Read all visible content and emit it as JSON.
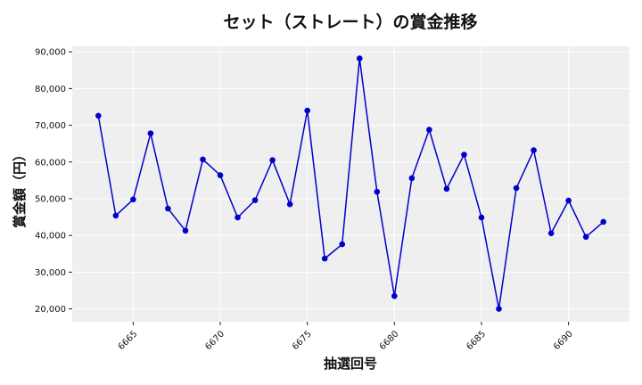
{
  "chart_data": {
    "type": "line",
    "title": "セット（ストレート）の賞金推移",
    "xlabel": "抽選回号",
    "ylabel": "賞金額（円）",
    "xlim": [
      6661.5,
      6693.5
    ],
    "ylim": [
      16500,
      91500
    ],
    "xticks": [
      6665,
      6670,
      6675,
      6680,
      6685,
      6690
    ],
    "xtick_labels": [
      "6665",
      "6670",
      "6675",
      "6680",
      "6685",
      "6690"
    ],
    "yticks": [
      20000,
      30000,
      40000,
      50000,
      60000,
      70000,
      80000,
      90000
    ],
    "ytick_labels": [
      "20,000",
      "30,000",
      "40,000",
      "50,000",
      "60,000",
      "70,000",
      "80,000",
      "90,000"
    ],
    "grid": true,
    "line_color": "#0000cc",
    "marker_color": "#0000cc",
    "plot_background": "#efefef",
    "x": [
      6663,
      6664,
      6665,
      6666,
      6667,
      6668,
      6669,
      6670,
      6671,
      6672,
      6673,
      6674,
      6675,
      6676,
      6677,
      6678,
      6679,
      6680,
      6681,
      6682,
      6683,
      6684,
      6685,
      6686,
      6687,
      6688,
      6689,
      6690,
      6691,
      6692
    ],
    "y": [
      72600,
      45400,
      49800,
      67800,
      47300,
      41300,
      60700,
      56400,
      44900,
      49600,
      60500,
      48500,
      74000,
      33700,
      37600,
      88200,
      51900,
      23500,
      55600,
      68800,
      52700,
      62000,
      44900,
      20000,
      52900,
      63200,
      40600,
      49500,
      39600,
      43700
    ]
  }
}
